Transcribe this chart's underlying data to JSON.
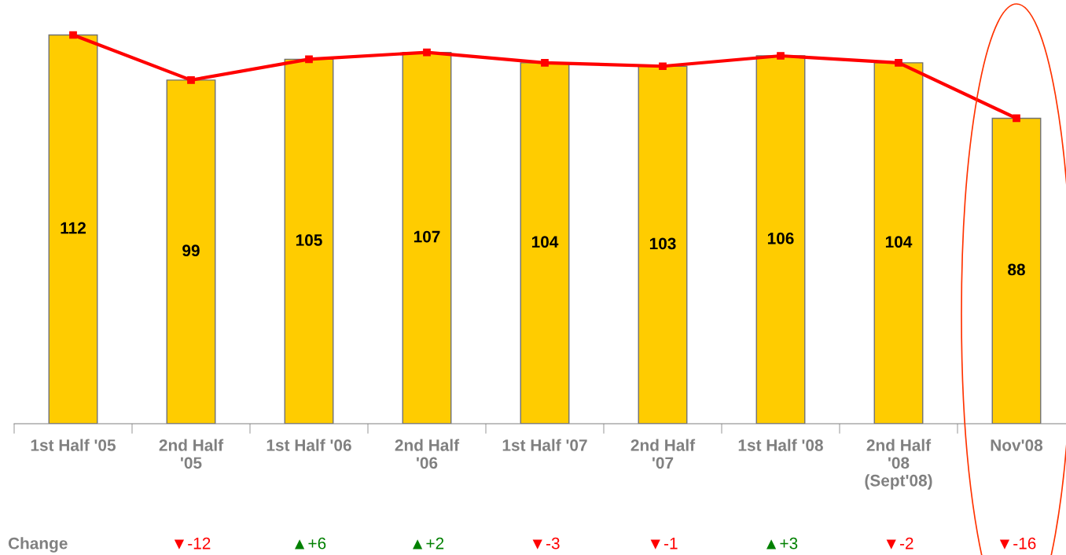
{
  "chart_data": {
    "type": "bar",
    "categories": [
      "1st Half '05",
      "2nd Half\n'05",
      "1st Half '06",
      "2nd Half\n'06",
      "1st Half '07",
      "2nd Half\n'07",
      "1st Half '08",
      "2nd Half\n'08\n(Sept'08)",
      "Nov'08"
    ],
    "series": [
      {
        "color": "#ffcc00",
        "values": [
          112,
          99,
          105,
          107,
          104,
          103,
          106,
          104,
          88
        ],
        "value_labels": [
          "112",
          "99",
          "105",
          "107",
          "104",
          "103",
          "106",
          "104",
          "88"
        ]
      },
      {
        "type": "line",
        "color": "#ff0000",
        "values": [
          112,
          99,
          105,
          107,
          104,
          103,
          106,
          104,
          88
        ],
        "marker": "square"
      }
    ],
    "annotations": [
      "Change",
      "▼-12",
      "▲+6",
      "▲+2",
      "▼-3",
      "▼-1",
      "▲+3",
      "▼-2",
      "▼-16"
    ]
  }
}
